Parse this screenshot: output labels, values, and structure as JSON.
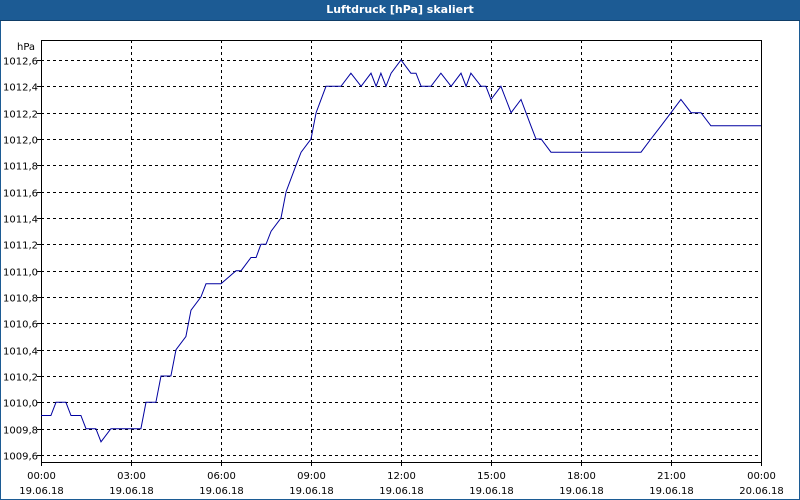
{
  "window": {
    "title": "Luftdruck [hPa] skaliert"
  },
  "chart_data": {
    "type": "line",
    "title": "Luftdruck [hPa] skaliert",
    "ylabel": "hPa",
    "xlabel": "",
    "ylim": [
      1009.6,
      1012.6
    ],
    "xlim": [
      0,
      24
    ],
    "grid": true,
    "yticks": [
      1012.6,
      1012.4,
      1012.2,
      1012.0,
      1011.8,
      1011.6,
      1011.4,
      1011.2,
      1011.0,
      1010.8,
      1010.6,
      1010.4,
      1010.2,
      1010.0,
      1009.8,
      1009.6
    ],
    "ytick_labels": [
      "1012,6",
      "1012,4",
      "1012,2",
      "1012,0",
      "1011,8",
      "1011,6",
      "1011,4",
      "1011,2",
      "1011,0",
      "1010,8",
      "1010,6",
      "1010,4",
      "1010,2",
      "1010,0",
      "1009,8",
      "1009,6"
    ],
    "xticks": [
      {
        "time": "00:00",
        "date": "19.06.18"
      },
      {
        "time": "03:00",
        "date": "19.06.18"
      },
      {
        "time": "06:00",
        "date": "19.06.18"
      },
      {
        "time": "09:00",
        "date": "19.06.18"
      },
      {
        "time": "12:00",
        "date": "19.06.18"
      },
      {
        "time": "15:00",
        "date": "19.06.18"
      },
      {
        "time": "18:00",
        "date": "19.06.18"
      },
      {
        "time": "21:00",
        "date": "19.06.18"
      },
      {
        "time": "00:00",
        "date": "20.06.18"
      }
    ],
    "series": [
      {
        "color": "#0000a0",
        "x": [
          0.0,
          0.33,
          0.5,
          0.83,
          1.0,
          1.33,
          1.5,
          1.83,
          2.0,
          2.33,
          2.83,
          3.0,
          3.33,
          3.5,
          3.83,
          4.0,
          4.33,
          4.5,
          4.83,
          5.0,
          5.33,
          5.5,
          5.83,
          6.0,
          6.5,
          6.67,
          7.0,
          7.17,
          7.33,
          7.5,
          7.67,
          8.0,
          8.17,
          8.5,
          8.67,
          9.0,
          9.17,
          9.5,
          10.0,
          10.33,
          10.67,
          11.0,
          11.17,
          11.33,
          11.5,
          11.67,
          12.0,
          12.33,
          12.5,
          12.67,
          13.0,
          13.33,
          13.67,
          14.0,
          14.17,
          14.33,
          14.67,
          14.83,
          15.0,
          15.33,
          15.5,
          15.67,
          16.0,
          16.33,
          16.5,
          16.67,
          17.0,
          17.33,
          17.67,
          18.0,
          18.5,
          19.0,
          19.5,
          20.0,
          20.33,
          20.67,
          21.0,
          21.33,
          21.67,
          22.0,
          22.33,
          22.67,
          23.0,
          23.5,
          24.0
        ],
        "y": [
          1009.9,
          1009.9,
          1010.0,
          1010.0,
          1009.9,
          1009.9,
          1009.8,
          1009.8,
          1009.7,
          1009.8,
          1009.8,
          1009.8,
          1009.8,
          1010.0,
          1010.0,
          1010.2,
          1010.2,
          1010.4,
          1010.5,
          1010.7,
          1010.8,
          1010.9,
          1010.9,
          1010.9,
          1011.0,
          1011.0,
          1011.1,
          1011.1,
          1011.2,
          1011.2,
          1011.3,
          1011.4,
          1011.6,
          1011.8,
          1011.9,
          1012.0,
          1012.2,
          1012.4,
          1012.4,
          1012.5,
          1012.4,
          1012.5,
          1012.4,
          1012.5,
          1012.4,
          1012.5,
          1012.6,
          1012.5,
          1012.5,
          1012.4,
          1012.4,
          1012.5,
          1012.4,
          1012.5,
          1012.4,
          1012.5,
          1012.4,
          1012.4,
          1012.3,
          1012.4,
          1012.3,
          1012.2,
          1012.3,
          1012.1,
          1012.0,
          1012.0,
          1011.9,
          1011.9,
          1011.9,
          1011.9,
          1011.9,
          1011.9,
          1011.9,
          1011.9,
          1012.0,
          1012.1,
          1012.2,
          1012.3,
          1012.2,
          1012.2,
          1012.1,
          1012.1,
          1012.1,
          1012.1,
          1012.1
        ]
      }
    ]
  }
}
